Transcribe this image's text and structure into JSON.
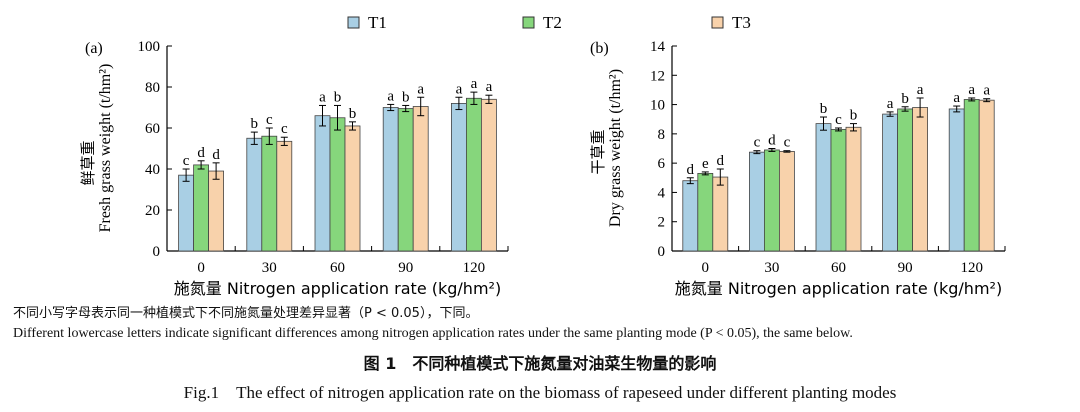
{
  "legend": [
    {
      "name": "T1",
      "color": "#a9cfe4"
    },
    {
      "name": "T2",
      "color": "#86d67c"
    },
    {
      "name": "T3",
      "color": "#f8d2ab"
    }
  ],
  "chart_data": [
    {
      "type": "bar",
      "panel_label": "(a)",
      "categories": [
        "0",
        "30",
        "60",
        "90",
        "120"
      ],
      "xlabel": "施氮量 Nitrogen application rate (kg/hm²)",
      "ylabel_cn": "鲜草重",
      "ylabel_en": "Fresh grass weight (t/hm²)",
      "ylim": [
        0,
        100
      ],
      "yticks": [
        "0",
        "20",
        "40",
        "60",
        "80",
        "100"
      ],
      "series": [
        {
          "name": "T1",
          "values": [
            37,
            55,
            66,
            70,
            72
          ],
          "errors": [
            3,
            3,
            5,
            1.5,
            3
          ],
          "letters": [
            "c",
            "b",
            "a",
            "a",
            "a"
          ]
        },
        {
          "name": "T2",
          "values": [
            42,
            56,
            65,
            69.5,
            74.5
          ],
          "errors": [
            2,
            4,
            6,
            1.5,
            3
          ],
          "letters": [
            "d",
            "c",
            "b",
            "b",
            "a"
          ]
        },
        {
          "name": "T3",
          "values": [
            39,
            53.5,
            61,
            70.5,
            74
          ],
          "errors": [
            4,
            2,
            2,
            4.5,
            2
          ],
          "letters": [
            "d",
            "c",
            "b",
            "a",
            "a"
          ]
        }
      ]
    },
    {
      "type": "bar",
      "panel_label": "(b)",
      "categories": [
        "0",
        "30",
        "60",
        "90",
        "120"
      ],
      "xlabel": "施氮量 Nitrogen application rate (kg/hm²)",
      "ylabel_cn": "干草重",
      "ylabel_en": "Dry grass weight (t/hm²)",
      "ylim": [
        0,
        14
      ],
      "yticks": [
        "0",
        "2",
        "4",
        "6",
        "8",
        "10",
        "12",
        "14"
      ],
      "series": [
        {
          "name": "T1",
          "values": [
            4.8,
            6.75,
            8.7,
            9.35,
            9.7
          ],
          "errors": [
            0.2,
            0.1,
            0.45,
            0.15,
            0.2
          ],
          "letters": [
            "d",
            "c",
            "b",
            "a",
            "a"
          ]
        },
        {
          "name": "T2",
          "values": [
            5.3,
            6.9,
            8.3,
            9.7,
            10.35
          ],
          "errors": [
            0.1,
            0.1,
            0.1,
            0.15,
            0.1
          ],
          "letters": [
            "e",
            "d",
            "c",
            "b",
            "a"
          ]
        },
        {
          "name": "T3",
          "values": [
            5.05,
            6.8,
            8.45,
            9.8,
            10.3
          ],
          "errors": [
            0.55,
            0.05,
            0.25,
            0.65,
            0.1
          ],
          "letters": [
            "d",
            "c",
            "b",
            "a",
            "a"
          ]
        }
      ]
    }
  ],
  "note_cn": "不同小写字母表示同一种植模式下不同施氮量处理差异显著（P < 0.05），下同。",
  "note_en": "Different lowercase letters indicate significant differences among nitrogen application rates under the same planting mode (P < 0.05), the same below.",
  "caption_cn": "图 1　不同种植模式下施氮量对油菜生物量的影响",
  "caption_en": "Fig.1　The effect of nitrogen application rate on the biomass of rapeseed under different planting modes"
}
